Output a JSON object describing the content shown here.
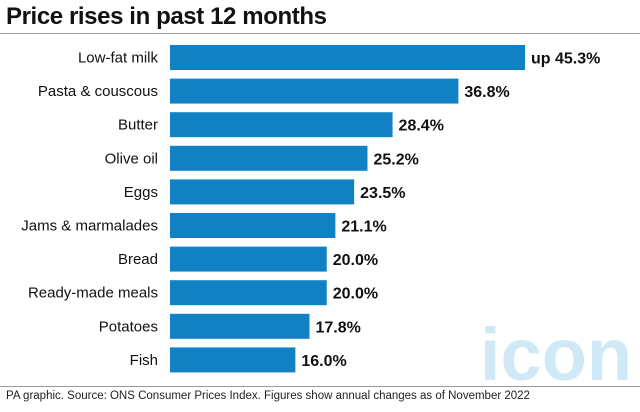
{
  "header": {
    "title": "Price rises in past 12 months"
  },
  "footer": {
    "source": "PA graphic. Source: ONS Consumer Prices Index. Figures show annual changes as of November 2022"
  },
  "watermark": {
    "text": "iconic"
  },
  "colors": {
    "bar": "#1181c4",
    "watermark": "#cfeaf6"
  },
  "chart_data": {
    "type": "bar",
    "orientation": "horizontal",
    "title": "Price rises in past 12 months",
    "unit": "%",
    "categories": [
      "Low-fat milk",
      "Pasta & couscous",
      "Butter",
      "Olive oil",
      "Eggs",
      "Jams & marmalades",
      "Bread",
      "Ready-made meals",
      "Potatoes",
      "Fish"
    ],
    "values": [
      45.3,
      36.8,
      28.4,
      25.2,
      23.5,
      21.1,
      20.0,
      20.0,
      17.8,
      16.0
    ],
    "value_labels": [
      "up 45.3%",
      "36.8%",
      "28.4%",
      "25.2%",
      "23.5%",
      "21.1%",
      "20.0%",
      "20.0%",
      "17.8%",
      "16.0%"
    ],
    "xlim": [
      0,
      45.3
    ],
    "grid": false,
    "legend": "none"
  }
}
